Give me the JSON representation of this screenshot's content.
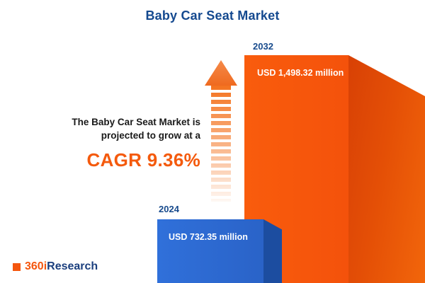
{
  "title": "Baby Car Seat Market",
  "chart_data": {
    "type": "bar",
    "title": "Baby Car Seat Market",
    "categories": [
      "2024",
      "2032"
    ],
    "values": [
      732.35,
      1498.32
    ],
    "unit": "USD million",
    "value_labels": [
      "USD 732.35 million",
      "USD 1,498.32 million"
    ],
    "cagr_percent": 9.36,
    "legend": "none",
    "grid": false,
    "colors": {
      "bar_2024_front": "#2e6ad1",
      "bar_2024_side": "#1c4da0",
      "bar_2032_front": "#f4520b",
      "bar_2032_side": "#d84105",
      "accent_orange": "#f45a0d",
      "navy": "#14498f"
    }
  },
  "bars": [
    {
      "year": "2024",
      "label": "USD 732.35 million"
    },
    {
      "year": "2032",
      "label": "USD 1,498.32 million"
    }
  ],
  "annotation": {
    "line1": "The Baby Car Seat Market is",
    "line2": "projected to grow at a",
    "cagr": "CAGR 9.36%"
  },
  "logo": {
    "prefix": "360i",
    "suffix": "Research"
  }
}
